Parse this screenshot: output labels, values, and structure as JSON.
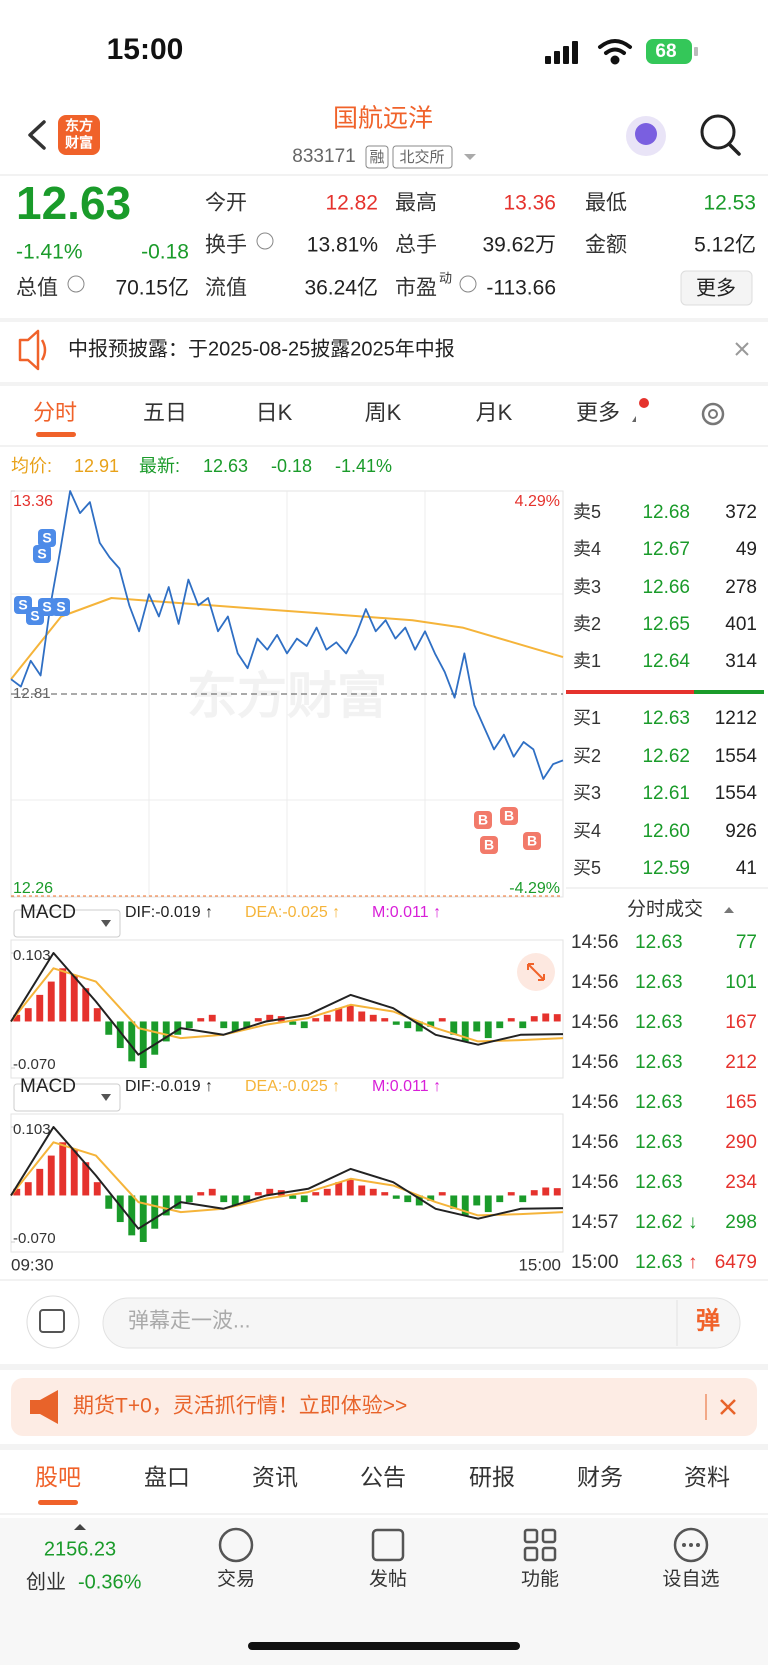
{
  "status": {
    "time": "15:00",
    "battery": "68"
  },
  "header": {
    "logo": [
      "东方",
      "财富"
    ],
    "title": "国航远洋",
    "code": "833171",
    "tags": [
      "融",
      "北交所"
    ]
  },
  "quote": {
    "price": "12.63",
    "change_pct": "-1.41%",
    "change": "-0.18",
    "fields": [
      {
        "label": "今开",
        "value": "12.82",
        "color": "#e5322d"
      },
      {
        "label": "最高",
        "value": "13.36",
        "color": "#e5322d"
      },
      {
        "label": "最低",
        "value": "12.53",
        "color": "#1a9b2a"
      },
      {
        "label": "换手",
        "value": "13.81%",
        "color": "#222222"
      },
      {
        "label": "总手",
        "value": "39.62万",
        "color": "#222222"
      },
      {
        "label": "金额",
        "value": "5.12亿",
        "color": "#222222"
      },
      {
        "label": "总值",
        "value": "70.15亿",
        "color": "#222222"
      },
      {
        "label": "流值",
        "value": "36.24亿",
        "color": "#222222"
      },
      {
        "label": "市盈",
        "sup": "动",
        "value": "-113.66",
        "color": "#222222"
      }
    ],
    "more": "更多"
  },
  "notice": "中报预披露：于2025-08-25披露2025年中报",
  "tabs": [
    "分时",
    "五日",
    "日K",
    "周K",
    "月K",
    "更多"
  ],
  "legend": {
    "avg_label": "均价:",
    "avg": "12.91",
    "last_label": "最新:",
    "last": "12.63",
    "change": "-0.18",
    "change_pct": "-1.41%"
  },
  "chart": {
    "ylim": [
      12.26,
      13.36
    ],
    "pct_range": [
      "4.29%",
      "-4.29%"
    ],
    "prev_close": 12.81,
    "watermark": "东方财富",
    "times": [
      "09:30",
      "15:00"
    ],
    "price_color": "#2f6fc4",
    "avg_color": "#f5b43a",
    "price": [
      12.85,
      12.83,
      12.9,
      12.86,
      13.05,
      13.2,
      13.36,
      13.3,
      13.33,
      13.22,
      13.18,
      13.15,
      13.05,
      12.98,
      13.08,
      13.02,
      13.1,
      13.0,
      13.12,
      13.05,
      13.07,
      12.98,
      13.02,
      12.92,
      12.88,
      12.96,
      12.93,
      12.97,
      12.92,
      12.96,
      12.94,
      12.99,
      12.93,
      12.95,
      12.92,
      12.97,
      13.04,
      12.98,
      13.01,
      12.96,
      12.99,
      12.93,
      12.98,
      12.92,
      12.87,
      12.8,
      12.92,
      12.78,
      12.72,
      12.66,
      12.7,
      12.64,
      12.68,
      12.66,
      12.58,
      12.62,
      12.63
    ],
    "avg": [
      12.85,
      13.02,
      13.07,
      13.06,
      13.05,
      13.04,
      13.03,
      13.02,
      13.01,
      12.99,
      12.95,
      12.91
    ],
    "trade_marks": [
      "S",
      "S",
      "S",
      "S",
      "S",
      "S",
      "B",
      "B",
      "B",
      "B"
    ]
  },
  "book": {
    "sells": [
      [
        "卖5",
        "12.68",
        "372"
      ],
      [
        "卖4",
        "12.67",
        "49"
      ],
      [
        "卖3",
        "12.66",
        "278"
      ],
      [
        "卖2",
        "12.65",
        "401"
      ],
      [
        "卖1",
        "12.64",
        "314"
      ]
    ],
    "buys": [
      [
        "买1",
        "12.63",
        "1212"
      ],
      [
        "买2",
        "12.62",
        "1554"
      ],
      [
        "买3",
        "12.61",
        "1554"
      ],
      [
        "买4",
        "12.60",
        "926"
      ],
      [
        "买5",
        "12.59",
        "41"
      ]
    ]
  },
  "trades": {
    "title": "分时成交",
    "rows": [
      {
        "time": "14:56",
        "price": "12.63",
        "volume": "77",
        "color": "#1a9b2a"
      },
      {
        "time": "14:56",
        "price": "12.63",
        "volume": "101",
        "color": "#1a9b2a"
      },
      {
        "time": "14:56",
        "price": "12.63",
        "volume": "167",
        "color": "#e5322d"
      },
      {
        "time": "14:56",
        "price": "12.63",
        "volume": "212",
        "color": "#e5322d"
      },
      {
        "time": "14:56",
        "price": "12.63",
        "volume": "165",
        "color": "#e5322d"
      },
      {
        "time": "14:56",
        "price": "12.63",
        "volume": "290",
        "color": "#e5322d"
      },
      {
        "time": "14:56",
        "price": "12.63",
        "volume": "234",
        "color": "#e5322d"
      },
      {
        "time": "14:57",
        "price": "12.62",
        "arrow": "↓",
        "volume": "298",
        "color": "#1a9b2a"
      },
      {
        "time": "15:00",
        "price": "12.63",
        "arrow": "↑",
        "volume": "6479",
        "color": "#e5322d"
      }
    ]
  },
  "macd": {
    "selector": "MACD",
    "dif_label": "DIF:-0.019 ↑",
    "dea_label": "DEA:-0.025 ↑",
    "m_label": "M:0.011 ↑",
    "ylim": [
      -0.07,
      0.103
    ],
    "yticks": [
      0.103,
      {
        "value": -0.07,
        "label": "-0.070"
      }
    ],
    "hist": [
      0.01,
      0.02,
      0.04,
      0.06,
      0.08,
      0.07,
      0.05,
      0.02,
      -0.02,
      -0.04,
      -0.06,
      -0.07,
      -0.05,
      -0.03,
      -0.02,
      -0.01,
      0.005,
      0.01,
      -0.01,
      -0.015,
      -0.01,
      0.005,
      0.01,
      0.008,
      -0.005,
      -0.01,
      0.005,
      0.01,
      0.02,
      0.025,
      0.015,
      0.01,
      0.005,
      -0.005,
      -0.01,
      -0.015,
      -0.008,
      0.005,
      -0.02,
      -0.03,
      -0.015,
      -0.025,
      -0.01,
      0.005,
      -0.01,
      0.008,
      0.012,
      0.011
    ],
    "dif": [
      0.0,
      0.103,
      0.03,
      -0.05,
      -0.01,
      -0.02,
      0.0,
      0.01,
      0.04,
      0.02,
      -0.02,
      -0.035,
      -0.02,
      -0.019
    ],
    "dea": [
      0.0,
      0.08,
      0.06,
      -0.01,
      -0.025,
      -0.02,
      -0.005,
      0.005,
      0.025,
      0.015,
      -0.01,
      -0.03,
      -0.028,
      -0.025
    ]
  },
  "comment": {
    "placeholder": "弹幕走一波...",
    "button": "弹"
  },
  "ad": "期货T+0，灵活抓行情！立即体验>>",
  "bottom_tabs": [
    "股吧",
    "盘口",
    "资讯",
    "公告",
    "研报",
    "财务",
    "资料"
  ],
  "nav": {
    "index_value": "2156.23",
    "index_name": "创业",
    "index_change": "-0.36%",
    "items": [
      "交易",
      "发帖",
      "功能",
      "设自选"
    ]
  }
}
